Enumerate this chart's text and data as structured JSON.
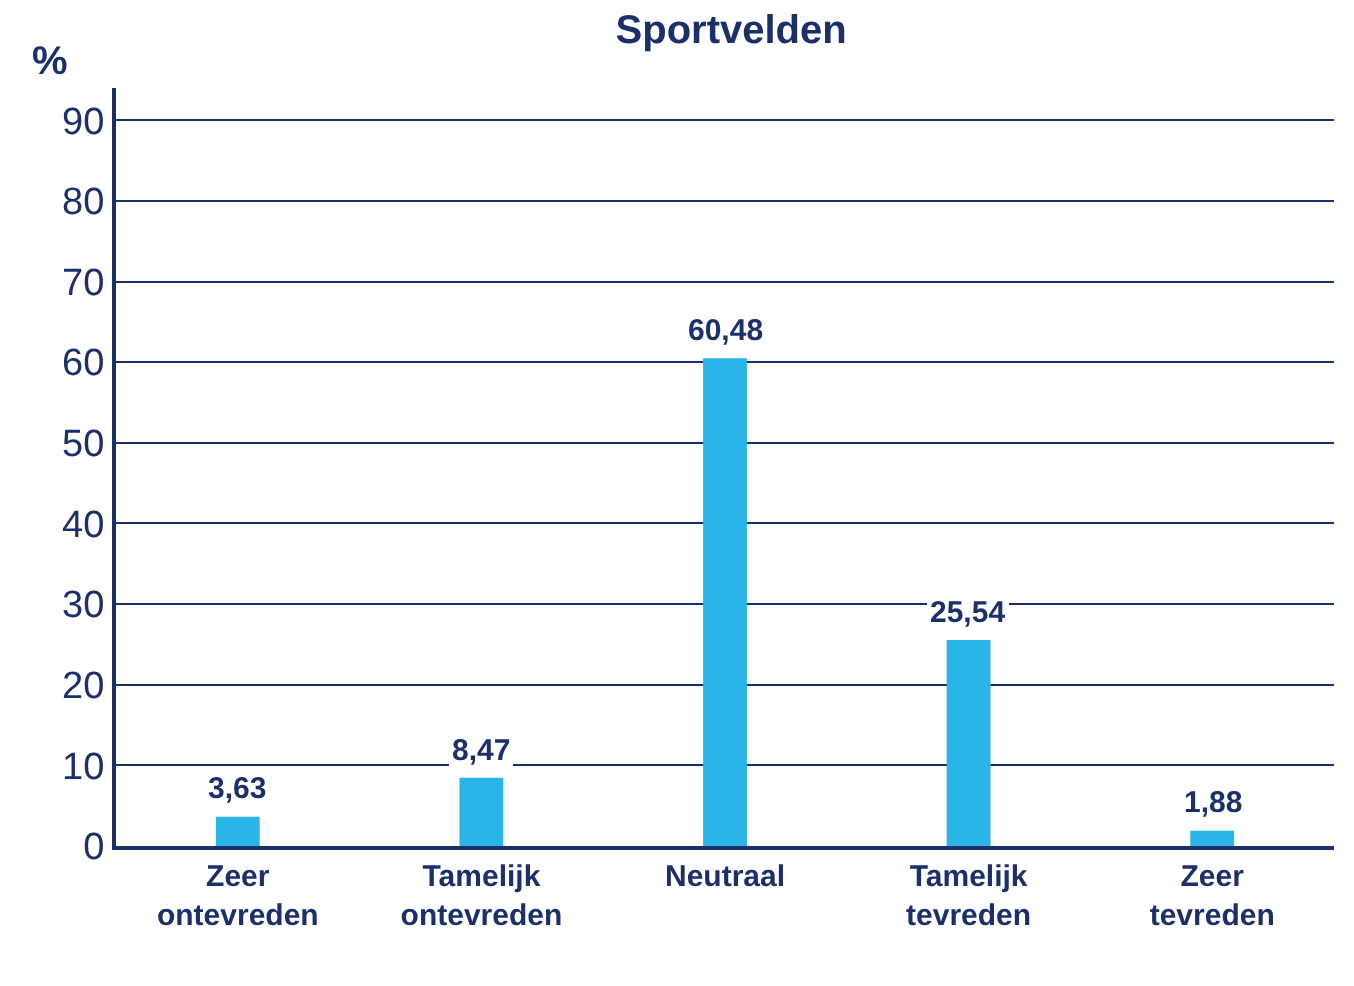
{
  "chart_data": {
    "type": "bar",
    "title": "Sportvelden",
    "ylabel": "%",
    "categories": [
      "Zeer ontevreden",
      "Tamelijk ontevreden",
      "Neutraal",
      "Tamelijk tevreden",
      "Zeer tevreden"
    ],
    "values": [
      3.63,
      8.47,
      60.48,
      25.54,
      1.88
    ],
    "value_labels": [
      "3,63",
      "8,47",
      "60,48",
      "25,54",
      "1,88"
    ],
    "color": "#29b5e8",
    "ylim": [
      0,
      94
    ],
    "yticks": [
      0,
      10,
      20,
      30,
      40,
      50,
      60,
      70,
      80,
      90
    ],
    "grid": "y"
  }
}
